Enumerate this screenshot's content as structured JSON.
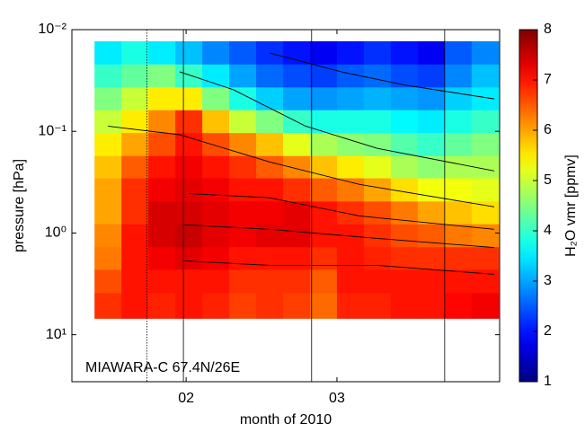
{
  "chart_data": {
    "type": "heatmap",
    "xlabel": "month of 2010",
    "ylabel": "pressure [hPa]",
    "annotation": "MIAWARA-C 67.4N/26E",
    "colorbar_label": "H₂O vmr [ppmv]",
    "colormap": "jet",
    "xlim": [
      10.8,
      90.2
    ],
    "xticks": [
      {
        "value": 32,
        "label": "02"
      },
      {
        "value": 60,
        "label": "03"
      }
    ],
    "yscale": "log",
    "y_reversed": true,
    "ylim": [
      0.01,
      29
    ],
    "yticks": [
      {
        "value": 0.01,
        "label": "10⁻²"
      },
      {
        "value": 0.1,
        "label": "10⁻¹"
      },
      {
        "value": 1,
        "label": "10⁰"
      },
      {
        "value": 10,
        "label": "10¹"
      }
    ],
    "clim": [
      1,
      8
    ],
    "cticks": [
      1,
      2,
      3,
      4,
      5,
      6,
      7,
      8
    ],
    "x_bins": [
      15,
      20,
      25,
      30,
      35,
      40,
      45,
      50,
      55,
      60,
      65,
      70,
      75,
      80,
      85,
      90
    ],
    "y_bins": [
      0.013,
      0.022,
      0.037,
      0.062,
      0.104,
      0.175,
      0.29,
      0.49,
      0.82,
      1.38,
      2.3,
      3.9,
      6.9
    ],
    "z": [
      [
        3.5,
        3.8,
        3.5,
        3.2,
        2.8,
        2.5,
        2.2,
        2.0,
        1.8,
        2.0,
        2.2,
        2.0,
        1.8,
        2.5,
        2.8
      ],
      [
        4.0,
        4.3,
        4.5,
        4.0,
        3.5,
        3.0,
        2.6,
        2.4,
        2.3,
        2.5,
        2.6,
        2.4,
        2.3,
        2.8,
        3.2
      ],
      [
        4.5,
        5.0,
        5.5,
        5.5,
        4.5,
        3.8,
        3.3,
        3.0,
        2.9,
        3.0,
        3.1,
        3.0,
        2.9,
        3.3,
        3.5
      ],
      [
        5.0,
        5.5,
        6.2,
        6.8,
        5.8,
        5.0,
        4.5,
        4.0,
        3.8,
        3.8,
        3.8,
        3.6,
        3.5,
        3.8,
        4.0
      ],
      [
        5.5,
        6.0,
        6.6,
        7.0,
        6.6,
        6.2,
        5.8,
        5.2,
        4.8,
        4.6,
        4.5,
        4.2,
        4.0,
        4.3,
        4.5
      ],
      [
        5.8,
        6.5,
        7.0,
        7.2,
        7.0,
        6.8,
        6.5,
        6.2,
        5.8,
        5.5,
        5.2,
        4.8,
        4.6,
        4.8,
        4.8
      ],
      [
        6.0,
        6.8,
        7.2,
        7.3,
        7.2,
        7.0,
        7.0,
        6.8,
        6.5,
        6.3,
        6.0,
        5.6,
        5.3,
        5.3,
        5.2
      ],
      [
        6.0,
        6.8,
        7.4,
        7.4,
        7.3,
        7.2,
        7.2,
        7.3,
        7.0,
        6.8,
        6.6,
        6.3,
        6.0,
        5.8,
        5.6
      ],
      [
        6.2,
        7.0,
        7.4,
        7.5,
        7.3,
        7.2,
        7.3,
        7.3,
        7.0,
        7.0,
        6.8,
        6.6,
        6.5,
        6.3,
        6.2
      ],
      [
        6.3,
        7.0,
        7.2,
        7.3,
        7.2,
        7.0,
        7.0,
        7.0,
        6.8,
        7.0,
        6.9,
        6.8,
        6.8,
        6.8,
        6.8
      ],
      [
        6.6,
        7.0,
        7.0,
        7.0,
        7.0,
        6.8,
        6.8,
        6.8,
        6.5,
        7.0,
        7.0,
        7.0,
        7.0,
        7.0,
        7.0
      ],
      [
        6.8,
        7.0,
        6.9,
        7.0,
        6.9,
        6.7,
        6.8,
        6.7,
        6.4,
        6.9,
        6.9,
        7.0,
        7.0,
        7.1,
        7.2
      ]
    ],
    "vlines": [
      {
        "x": 24.7,
        "style": "dotted"
      },
      {
        "x": 31.5,
        "style": "solid"
      },
      {
        "x": 55.3,
        "style": "solid"
      },
      {
        "x": 80,
        "style": "solid"
      }
    ],
    "line_color": "#000000",
    "lines": [
      {
        "x": [
          30.8,
          40.8,
          54.2,
          67.5,
          89.2
        ],
        "y": [
          0.026,
          0.039,
          0.089,
          0.147,
          0.245
        ]
      },
      {
        "x": [
          17.5,
          30.8,
          47.5,
          64.2,
          89.2
        ],
        "y": [
          0.089,
          0.108,
          0.2,
          0.333,
          0.553
        ]
      },
      {
        "x": [
          32.5,
          47.5,
          64.2,
          89.2
        ],
        "y": [
          0.41,
          0.45,
          0.68,
          0.92
        ]
      },
      {
        "x": [
          31.7,
          47.5,
          67.5,
          89.2
        ],
        "y": [
          0.83,
          0.92,
          1.13,
          1.39
        ]
      },
      {
        "x": [
          31.7,
          47.5,
          67.5,
          89.2
        ],
        "y": [
          1.88,
          2.08,
          2.08,
          2.55
        ]
      },
      {
        "x": [
          47.5,
          60.8,
          72.5,
          89.2
        ],
        "y": [
          0.017,
          0.026,
          0.035,
          0.048
        ]
      }
    ]
  }
}
